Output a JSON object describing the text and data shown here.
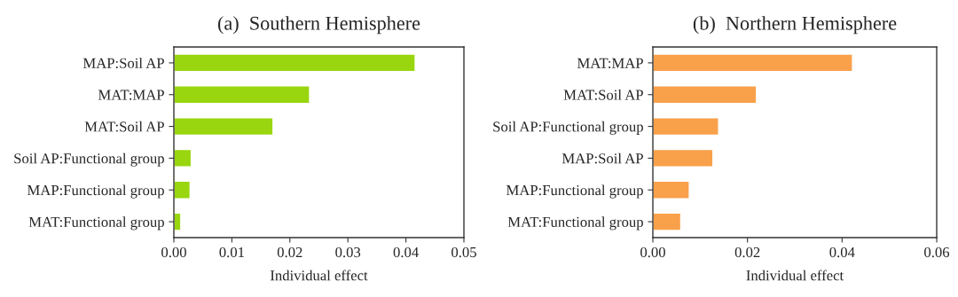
{
  "chart_data": [
    {
      "type": "bar",
      "orientation": "horizontal",
      "title": "(a)  Southern Hemisphere",
      "xlabel": "Individual effect",
      "categories": [
        "MAP:Soil AP",
        "MAT:MAP",
        "MAT:Soil AP",
        "Soil AP:Functional group",
        "MAP:Functional group",
        "MAT:Functional group"
      ],
      "values": [
        0.0416,
        0.0234,
        0.0171,
        0.003,
        0.0028,
        0.0012
      ],
      "color": "#99d60f",
      "xlim": [
        0,
        0.05
      ],
      "xticks": [
        {
          "value": 0,
          "label": "0.00"
        },
        {
          "value": 0.01,
          "label": "0.01"
        },
        {
          "value": 0.02,
          "label": "0.02"
        },
        {
          "value": 0.03,
          "label": "0.03"
        },
        {
          "value": 0.04,
          "label": "0.04"
        },
        {
          "value": 0.05,
          "label": "0.05"
        }
      ],
      "grid": false,
      "legend": false
    },
    {
      "type": "bar",
      "orientation": "horizontal",
      "title": "(b)  Northern Hemisphere",
      "xlabel": "Individual effect",
      "categories": [
        "MAT:MAP",
        "MAT:Soil AP",
        "Soil AP:Functional group",
        "MAP:Soil AP",
        "MAP:Functional group",
        "MAT:Functional group"
      ],
      "values": [
        0.0422,
        0.0219,
        0.0139,
        0.0127,
        0.0077,
        0.0059
      ],
      "color": "#f9a04a",
      "xlim": [
        0,
        0.06
      ],
      "xticks": [
        {
          "value": 0,
          "label": "0.00"
        },
        {
          "value": 0.02,
          "label": "0.02"
        },
        {
          "value": 0.04,
          "label": "0.04"
        },
        {
          "value": 0.06,
          "label": "0.06"
        }
      ],
      "grid": false,
      "legend": false
    }
  ]
}
